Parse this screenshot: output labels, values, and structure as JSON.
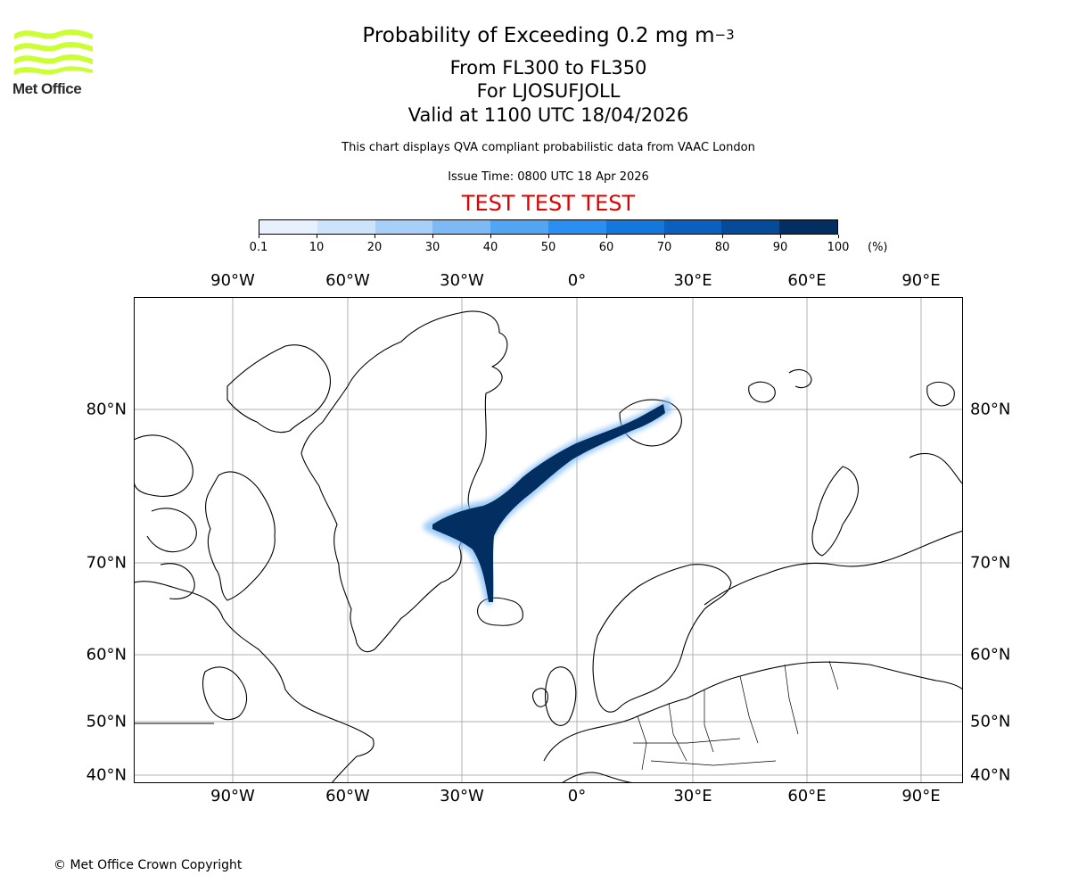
{
  "logo": {
    "text": "Met Office",
    "color": "#ccff33"
  },
  "title": {
    "main": "Probability of Exceeding 0.2 mg m",
    "main_sup": "−3",
    "flight_levels": "From FL300 to FL350",
    "volcano": "For LJOSUFJOLL",
    "valid": "Valid at 1100 UTC 18/04/2026"
  },
  "description": "This chart displays QVA compliant probabilistic data from VAAC London",
  "issue_time": "Issue Time: 0800 UTC 18 Apr 2026",
  "test_banner": {
    "text": "TEST TEST TEST",
    "color": "#e00000"
  },
  "colorbar": {
    "ticks": [
      "0.1",
      "10",
      "20",
      "30",
      "40",
      "50",
      "60",
      "70",
      "80",
      "90",
      "100"
    ],
    "unit": "(%)",
    "colors": [
      "#e6f1fd",
      "#cde3fb",
      "#a8cff8",
      "#7dbaf5",
      "#52a5f2",
      "#2a8ff0",
      "#1477dc",
      "#0b5fbe",
      "#064a9a",
      "#032e62"
    ]
  },
  "map": {
    "lon_labels": [
      "90°W",
      "60°W",
      "30°W",
      "0°",
      "30°E",
      "60°E",
      "90°E"
    ],
    "lat_labels": [
      "80°N",
      "70°N",
      "60°N",
      "50°N",
      "40°N"
    ],
    "plume_color": "#032e62"
  },
  "copyright": "© Met Office Crown Copyright"
}
